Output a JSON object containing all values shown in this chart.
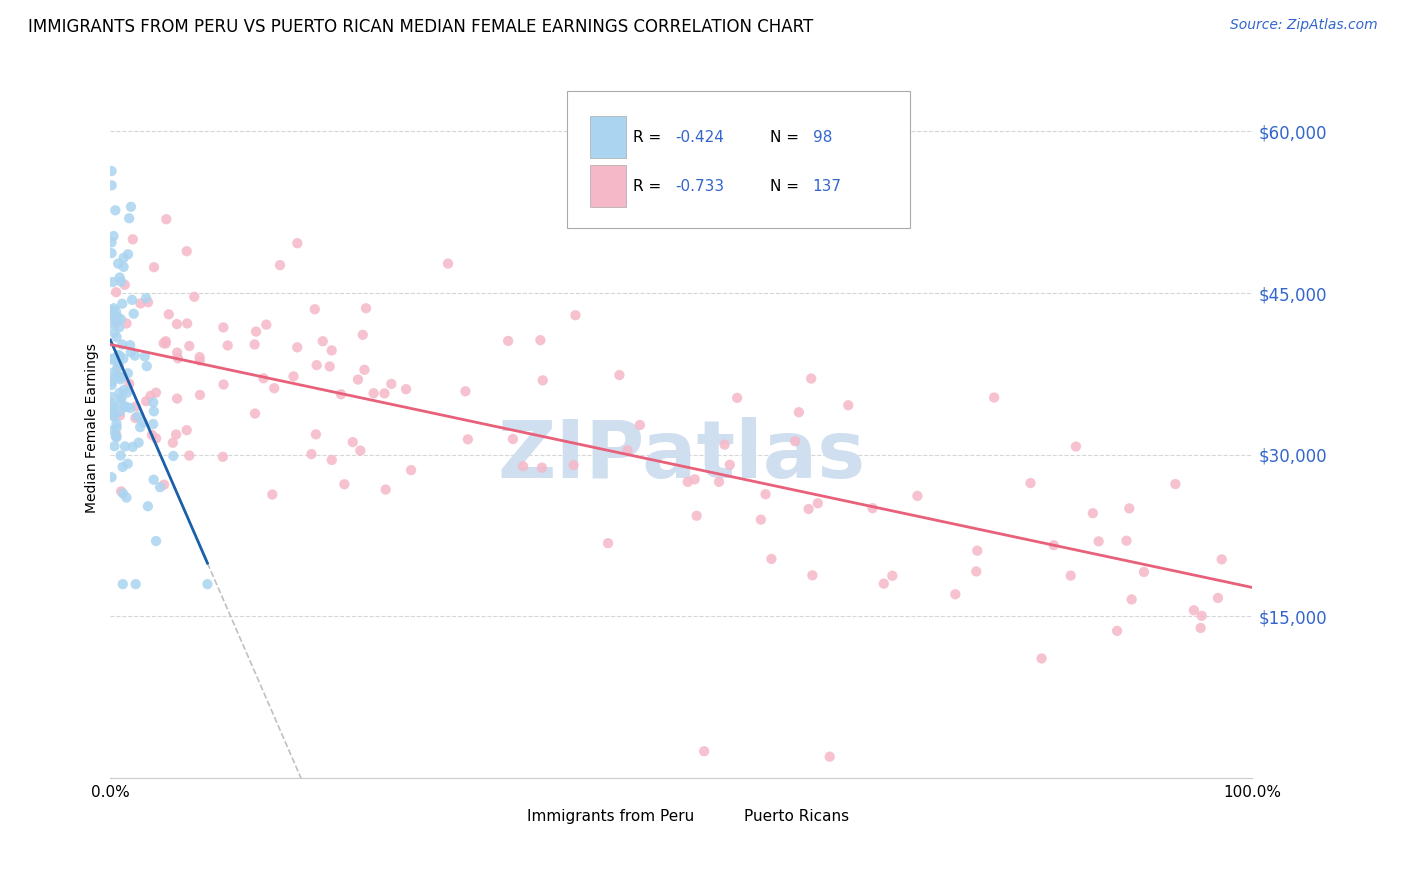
{
  "title": "IMMIGRANTS FROM PERU VS PUERTO RICAN MEDIAN FEMALE EARNINGS CORRELATION CHART",
  "source": "Source: ZipAtlas.com",
  "ylabel": "Median Female Earnings",
  "xlim": [
    0.0,
    1.0
  ],
  "ylim": [
    0,
    65000
  ],
  "peru_R": -0.424,
  "peru_N": 98,
  "pr_R": -0.733,
  "pr_N": 137,
  "peru_color": "#aad4f0",
  "pr_color": "#f5b8c8",
  "peru_line_color": "#1a5fa8",
  "pr_line_color": "#e8607a",
  "dash_line_color": "#c0c0c0",
  "background_color": "#ffffff",
  "grid_color": "#cccccc",
  "watermark_color": "#d0dff0",
  "title_fontsize": 12,
  "source_fontsize": 10,
  "legend_color": "#3366cc",
  "ytick_vals": [
    0,
    15000,
    30000,
    45000,
    60000
  ],
  "ytick_labels": [
    "",
    "$15,000",
    "$30,000",
    "$45,000",
    "$60,000"
  ]
}
